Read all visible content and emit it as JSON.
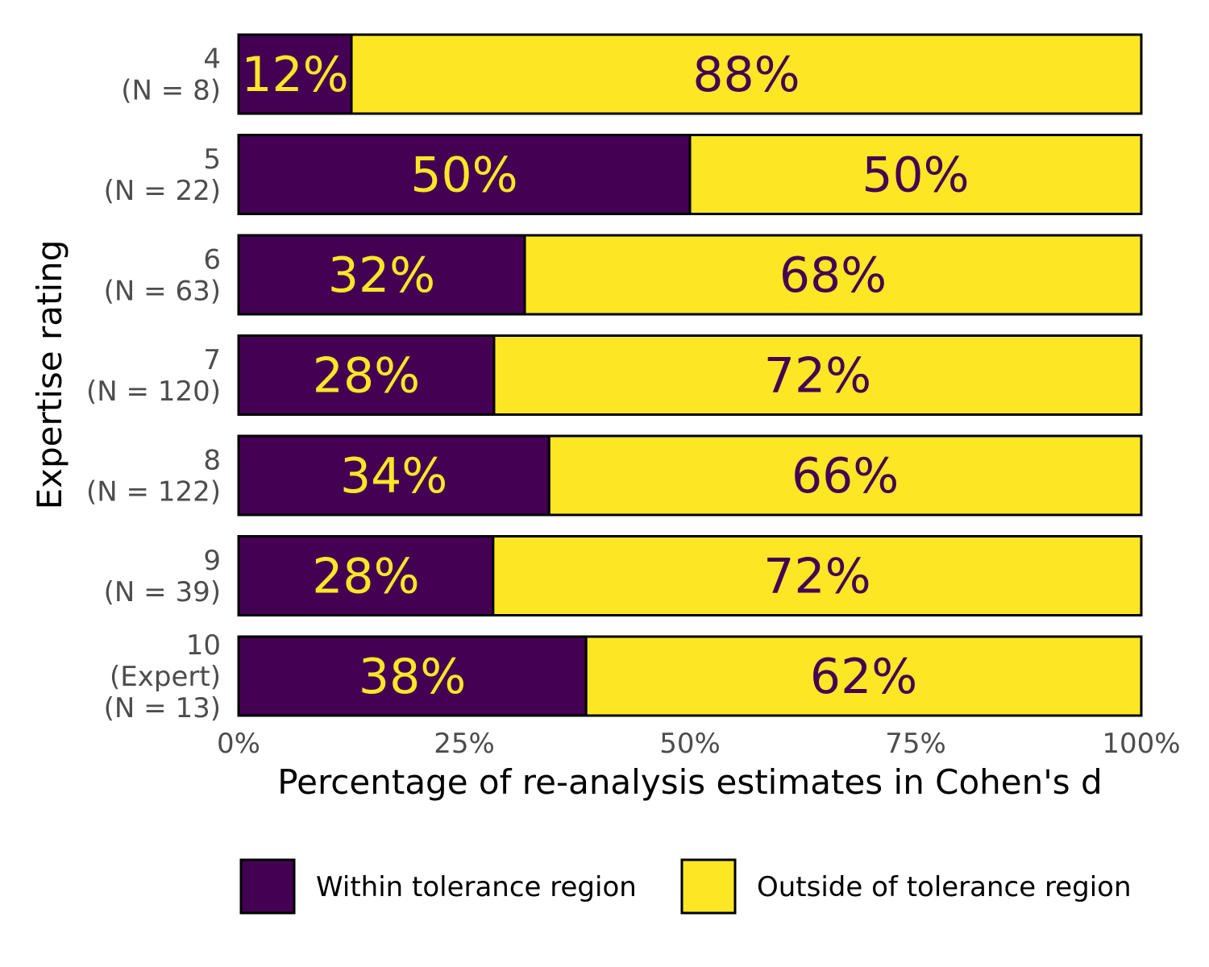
{
  "chart_data": {
    "type": "bar",
    "orientation": "horizontal",
    "stacked": true,
    "xlabel": "Percentage of re-analysis estimates in Cohen's d",
    "ylabel": "Expertise rating",
    "xlim": [
      0,
      100
    ],
    "x_ticks": [
      "0%",
      "25%",
      "50%",
      "75%",
      "100%"
    ],
    "categories": [
      {
        "lines": [
          "4",
          "(N = 8)"
        ]
      },
      {
        "lines": [
          "5",
          "(N = 22)"
        ]
      },
      {
        "lines": [
          "6",
          "(N = 63)"
        ]
      },
      {
        "lines": [
          "7",
          "(N = 120)"
        ]
      },
      {
        "lines": [
          "8",
          "(N = 122)"
        ]
      },
      {
        "lines": [
          "9",
          "(N = 39)"
        ]
      },
      {
        "lines": [
          "10",
          "(Expert)",
          "(N = 13)"
        ]
      }
    ],
    "series": [
      {
        "name": "Within tolerance region",
        "color": "#440154",
        "label_color": "#FDE725",
        "values": [
          12.5,
          50,
          31.7,
          28.3,
          34.4,
          28.2,
          38.5
        ],
        "labels": [
          "12%",
          "50%",
          "32%",
          "28%",
          "34%",
          "28%",
          "38%"
        ]
      },
      {
        "name": "Outside of tolerance region",
        "color": "#FDE725",
        "label_color": "#440154",
        "values": [
          87.5,
          50,
          68.3,
          71.7,
          65.6,
          71.8,
          61.5
        ],
        "labels": [
          "88%",
          "50%",
          "68%",
          "72%",
          "66%",
          "72%",
          "62%"
        ]
      }
    ],
    "grid": false,
    "legend_position": "bottom"
  }
}
